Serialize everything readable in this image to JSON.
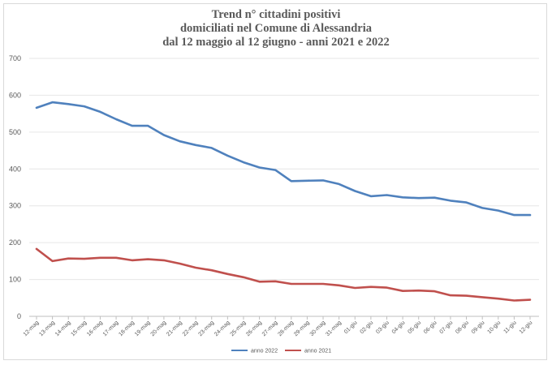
{
  "chart_data": {
    "type": "line",
    "title_lines": [
      "Trend n° cittadini positivi",
      "domiciliati nel Comune di Alessandria",
      "dal 12 maggio al 12 giugno - anni 2021 e 2022"
    ],
    "x": [
      "12-mag",
      "13-mag",
      "14-mag",
      "15-mag",
      "16-mag",
      "17-mag",
      "18-mag",
      "19-mag",
      "20-mag",
      "21-mag",
      "22-mag",
      "23-mag",
      "24-mag",
      "25-mag",
      "26-mag",
      "27-mag",
      "28-mag",
      "29-mag",
      "30-mag",
      "31-mag",
      "01-giu",
      "02-giu",
      "03-giu",
      "04-giu",
      "05-giu",
      "06-giu",
      "07-giu",
      "08-giu",
      "09-giu",
      "10-giu",
      "11-giu",
      "12-giu"
    ],
    "ylim": [
      0,
      700
    ],
    "yticks": [
      0,
      100,
      200,
      300,
      400,
      500,
      600,
      700
    ],
    "grid": true,
    "legend": "bottom",
    "series": [
      {
        "name": "anno 2022",
        "color": "#4f81bd",
        "values": [
          566,
          581,
          576,
          570,
          555,
          535,
          517,
          517,
          492,
          475,
          465,
          457,
          436,
          418,
          404,
          397,
          367,
          368,
          369,
          359,
          340,
          326,
          329,
          323,
          321,
          322,
          314,
          309,
          294,
          287,
          275,
          275
        ]
      },
      {
        "name": "anno 2021",
        "color": "#c0504d",
        "values": [
          183,
          150,
          157,
          156,
          159,
          159,
          152,
          155,
          152,
          143,
          132,
          125,
          115,
          106,
          94,
          95,
          88,
          88,
          88,
          84,
          77,
          80,
          78,
          69,
          70,
          68,
          57,
          56,
          52,
          48,
          43,
          45
        ]
      }
    ]
  }
}
